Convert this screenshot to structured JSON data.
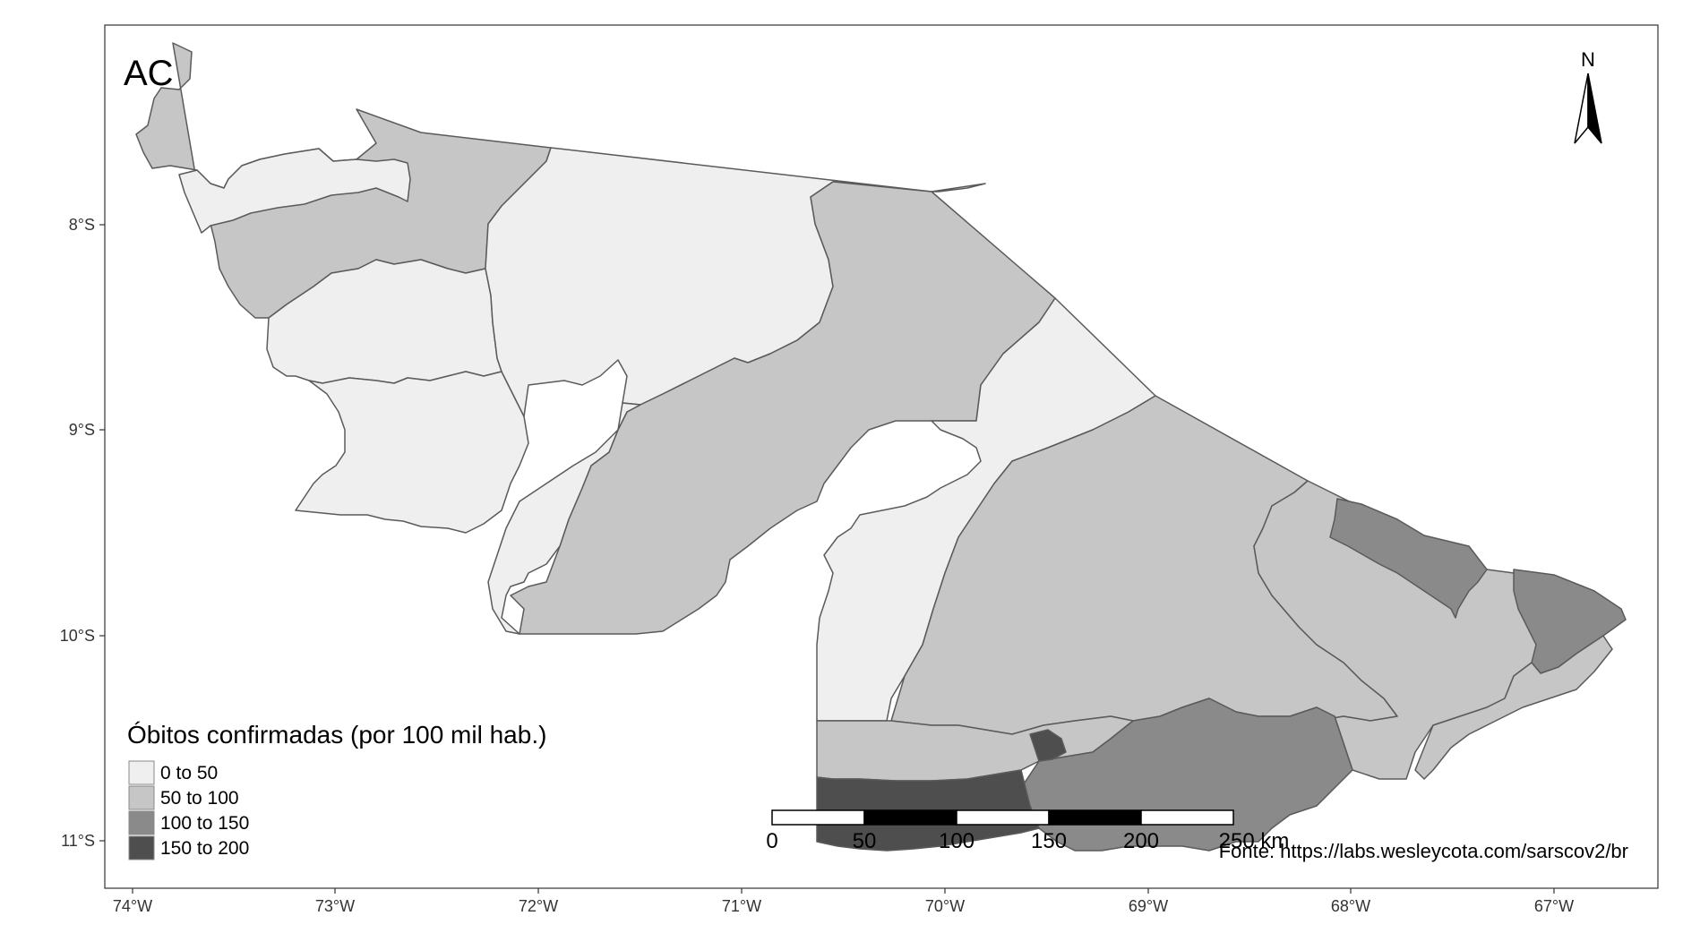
{
  "map": {
    "state_label": "AC",
    "north_label": "N",
    "source_text": "Fonte: https://labs.wesleycota.com/sarscov2/br",
    "x_ticks": [
      "74°W",
      "73°W",
      "72°W",
      "71°W",
      "70°W",
      "69°W",
      "68°W",
      "67°W"
    ],
    "y_ticks": [
      "8°S",
      "9°S",
      "10°S",
      "11°S"
    ],
    "scale_bar": {
      "labels": [
        "0",
        "50",
        "100",
        "150",
        "200",
        "250 km"
      ]
    },
    "legend": {
      "title": "Óbitos confirmadas (por 100 mil hab.)",
      "items": [
        {
          "label": "0 to 50",
          "color": "#efefef"
        },
        {
          "label": "50 to 100",
          "color": "#c6c6c6"
        },
        {
          "label": "100 to 150",
          "color": "#8a8a8a"
        },
        {
          "label": "150 to 200",
          "color": "#4e4e4e"
        }
      ]
    },
    "colors": {
      "border": "#5a5a5a",
      "frame": "#333333",
      "text": "#000000"
    }
  }
}
